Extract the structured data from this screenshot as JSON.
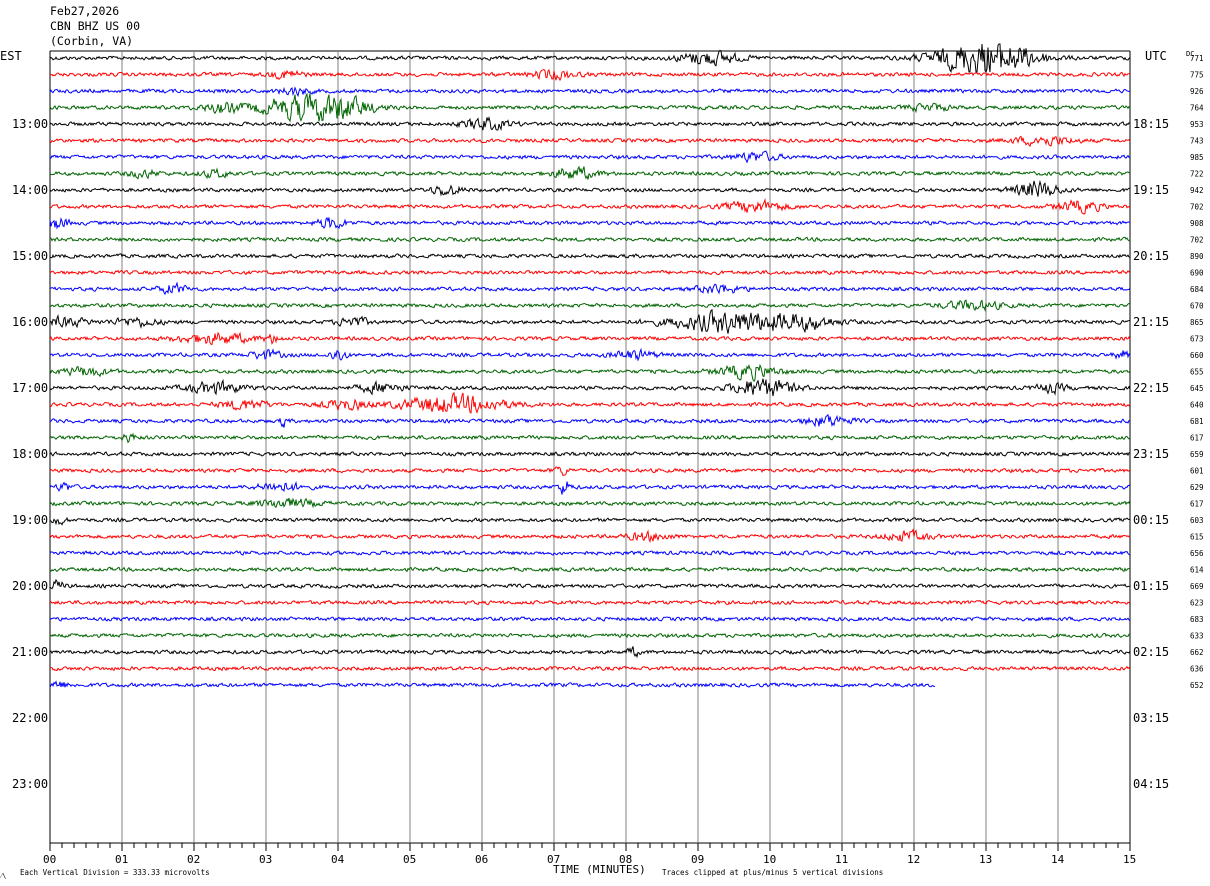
{
  "header": {
    "date": "Feb27,2026",
    "station": "CBN BHZ US 00",
    "location": "(Corbin, VA)"
  },
  "left_axis_label": "EST",
  "right_axis_label": "UTC",
  "dc_label": "DC",
  "footer": {
    "scale": "Each Vertical Division =  333.33 microvolts",
    "clip": "Traces clipped at plus/minus 5 vertical divisions",
    "corner_mark": "⁄\\"
  },
  "colors": {
    "trace_cycle": [
      "#000000",
      "#ff0000",
      "#0000ff",
      "#006400"
    ],
    "grid": "#808080",
    "background": "#ffffff"
  },
  "chart_data": {
    "type": "line",
    "title": "",
    "xlabel": "TIME (MINUTES)",
    "x_ticks": [
      "00",
      "01",
      "02",
      "03",
      "04",
      "05",
      "06",
      "07",
      "08",
      "09",
      "10",
      "11",
      "12",
      "13",
      "14",
      "15"
    ],
    "xlim": [
      0,
      15
    ],
    "est_hour_labels": [
      {
        "row": 4,
        "label": "13:00"
      },
      {
        "row": 8,
        "label": "14:00"
      },
      {
        "row": 12,
        "label": "15:00"
      },
      {
        "row": 16,
        "label": "16:00"
      },
      {
        "row": 20,
        "label": "17:00"
      },
      {
        "row": 24,
        "label": "18:00"
      },
      {
        "row": 28,
        "label": "19:00"
      },
      {
        "row": 32,
        "label": "20:00"
      },
      {
        "row": 36,
        "label": "21:00"
      },
      {
        "row": 40,
        "label": "22:00"
      },
      {
        "row": 44,
        "label": "23:00"
      }
    ],
    "utc_labels": [
      {
        "row": 4,
        "label": "18:15"
      },
      {
        "row": 8,
        "label": "19:15"
      },
      {
        "row": 12,
        "label": "20:15"
      },
      {
        "row": 16,
        "label": "21:15"
      },
      {
        "row": 20,
        "label": "22:15"
      },
      {
        "row": 24,
        "label": "23:15"
      },
      {
        "row": 28,
        "label": "00:15"
      },
      {
        "row": 32,
        "label": "01:15"
      },
      {
        "row": 36,
        "label": "02:15"
      },
      {
        "row": 40,
        "label": "03:15"
      },
      {
        "row": 44,
        "label": "04:15"
      }
    ],
    "dc_offsets": [
      "771",
      "775",
      "926",
      "764",
      "953",
      "743",
      "985",
      "722",
      "942",
      "702",
      "908",
      "702",
      "890",
      "690",
      "684",
      "670",
      "865",
      "673",
      "660",
      "655",
      "645",
      "640",
      "681",
      "617",
      "659",
      "601",
      "629",
      "617",
      "603",
      "615",
      "656",
      "614",
      "669",
      "623",
      "683",
      "633",
      "662",
      "636",
      "652"
    ],
    "series": [
      {
        "row": 0,
        "bursts": [
          [
            9.15,
            0.4,
            2.5
          ],
          [
            12.85,
            0.6,
            5.0
          ],
          [
            13.3,
            0.5,
            3.0
          ]
        ]
      },
      {
        "row": 1,
        "bursts": [
          [
            3.3,
            0.2,
            1.5
          ],
          [
            7.0,
            0.3,
            1.6
          ]
        ]
      },
      {
        "row": 2,
        "bursts": [
          [
            3.4,
            0.2,
            1.4
          ]
        ]
      },
      {
        "row": 3,
        "bursts": [
          [
            3.5,
            0.55,
            4.5
          ],
          [
            4.1,
            0.4,
            3.0
          ],
          [
            2.4,
            0.3,
            1.6
          ],
          [
            12.2,
            0.3,
            1.2
          ]
        ]
      },
      {
        "row": 4,
        "bursts": [
          [
            6.05,
            0.3,
            2.2
          ]
        ]
      },
      {
        "row": 5,
        "bursts": [
          [
            13.8,
            0.4,
            1.6
          ]
        ]
      },
      {
        "row": 6,
        "bursts": [
          [
            9.8,
            0.3,
            1.6
          ]
        ]
      },
      {
        "row": 7,
        "bursts": [
          [
            7.3,
            0.3,
            2.2
          ],
          [
            1.3,
            0.2,
            1.3
          ],
          [
            2.3,
            0.2,
            1.3
          ]
        ]
      },
      {
        "row": 8,
        "bursts": [
          [
            13.7,
            0.3,
            3.0
          ],
          [
            5.5,
            0.2,
            2.0
          ]
        ]
      },
      {
        "row": 9,
        "bursts": [
          [
            9.8,
            0.4,
            2.0
          ],
          [
            14.3,
            0.3,
            2.0
          ]
        ]
      },
      {
        "row": 10,
        "bursts": [
          [
            0.1,
            0.15,
            2.0
          ],
          [
            3.9,
            0.2,
            2.0
          ]
        ]
      },
      {
        "row": 11,
        "bursts": []
      },
      {
        "row": 12,
        "bursts": []
      },
      {
        "row": 13,
        "bursts": []
      },
      {
        "row": 14,
        "bursts": [
          [
            1.7,
            0.2,
            1.7
          ],
          [
            9.3,
            0.3,
            1.6
          ]
        ]
      },
      {
        "row": 15,
        "bursts": [
          [
            12.8,
            0.4,
            1.6
          ]
        ]
      },
      {
        "row": 16,
        "bursts": [
          [
            0.2,
            0.3,
            1.7
          ],
          [
            1.2,
            0.3,
            1.5
          ],
          [
            4.2,
            0.2,
            1.8
          ],
          [
            9.5,
            0.8,
            4.0
          ],
          [
            10.5,
            0.4,
            2.0
          ]
        ]
      },
      {
        "row": 17,
        "bursts": [
          [
            2.3,
            0.5,
            1.9
          ],
          [
            3.1,
            0.1,
            1.5
          ]
        ]
      },
      {
        "row": 18,
        "bursts": [
          [
            3.0,
            0.2,
            1.6
          ],
          [
            4.0,
            0.1,
            2.5
          ],
          [
            8.1,
            0.3,
            1.6
          ],
          [
            14.9,
            0.1,
            1.6
          ]
        ]
      },
      {
        "row": 19,
        "bursts": [
          [
            0.5,
            0.3,
            1.6
          ],
          [
            9.7,
            0.4,
            2.5
          ]
        ]
      },
      {
        "row": 20,
        "bursts": [
          [
            2.3,
            0.4,
            2.0
          ],
          [
            9.9,
            0.4,
            3.5
          ],
          [
            4.6,
            0.3,
            1.8
          ],
          [
            13.9,
            0.2,
            1.6
          ]
        ]
      },
      {
        "row": 21,
        "bursts": [
          [
            5.6,
            0.7,
            3.2
          ],
          [
            2.7,
            0.3,
            1.8
          ],
          [
            4.1,
            0.3,
            1.8
          ]
        ]
      },
      {
        "row": 22,
        "bursts": [
          [
            10.8,
            0.3,
            2.0
          ],
          [
            3.25,
            0.05,
            2.0
          ]
        ]
      },
      {
        "row": 23,
        "bursts": [
          [
            1.1,
            0.1,
            1.4
          ]
        ]
      },
      {
        "row": 24,
        "bursts": []
      },
      {
        "row": 25,
        "bursts": [
          [
            7.1,
            0.1,
            1.5
          ]
        ]
      },
      {
        "row": 26,
        "bursts": [
          [
            7.15,
            0.08,
            3.0
          ],
          [
            3.2,
            0.3,
            1.6
          ],
          [
            0.2,
            0.1,
            1.5
          ]
        ]
      },
      {
        "row": 27,
        "bursts": [
          [
            3.3,
            0.4,
            1.6
          ]
        ]
      },
      {
        "row": 28,
        "bursts": [
          [
            0.1,
            0.1,
            1.5
          ]
        ]
      },
      {
        "row": 29,
        "bursts": [
          [
            11.9,
            0.3,
            1.7
          ],
          [
            8.3,
            0.3,
            1.4
          ]
        ]
      },
      {
        "row": 30,
        "bursts": []
      },
      {
        "row": 31,
        "bursts": []
      },
      {
        "row": 32,
        "bursts": [
          [
            0.1,
            0.1,
            1.7
          ]
        ]
      },
      {
        "row": 33,
        "bursts": []
      },
      {
        "row": 34,
        "bursts": []
      },
      {
        "row": 35,
        "bursts": []
      },
      {
        "row": 36,
        "bursts": [
          [
            8.1,
            0.1,
            1.4
          ]
        ]
      },
      {
        "row": 37,
        "bursts": []
      },
      {
        "row": 38,
        "bursts": [
          [
            0.1,
            0.15,
            1.5
          ]
        ],
        "end_minute": 12.3
      }
    ]
  }
}
